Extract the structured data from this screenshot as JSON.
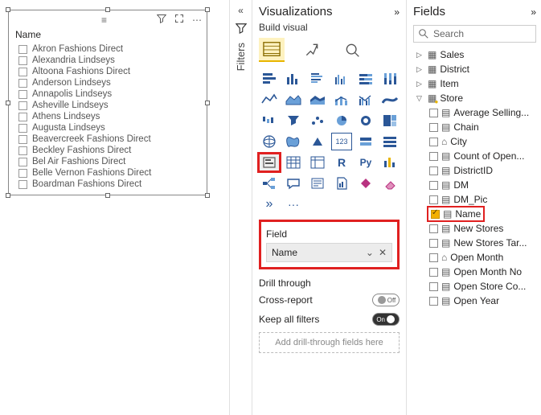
{
  "slicer": {
    "title": "Name",
    "items": [
      "Akron Fashions Direct",
      "Alexandria Lindseys",
      "Altoona Fashions Direct",
      "Anderson Lindseys",
      "Annapolis Lindseys",
      "Asheville Lindseys",
      "Athens Lindseys",
      "Augusta Lindseys",
      "Beavercreek Fashions Direct",
      "Beckley Fashions Direct",
      "Bel Air Fashions Direct",
      "Belle Vernon Fashions Direct",
      "Boardman Fashions Direct"
    ]
  },
  "filters": {
    "label": "Filters"
  },
  "viz": {
    "title": "Visualizations",
    "sub": "Build visual",
    "field_label": "Field",
    "field_value": "Name",
    "drill_title": "Drill through",
    "cross_label": "Cross-report",
    "cross_state": "Off",
    "keep_label": "Keep all filters",
    "keep_state": "On",
    "drop_hint": "Add drill-through fields here",
    "r_label": "R",
    "py_label": "Py",
    "more": "···"
  },
  "fields": {
    "title": "Fields",
    "search_ph": "Search",
    "tables": {
      "sales": "Sales",
      "district": "District",
      "item": "Item",
      "store": "Store"
    },
    "store_cols": [
      "Average Selling...",
      "Chain",
      "City",
      "Count of Open...",
      "DistrictID",
      "DM",
      "DM_Pic",
      "Name",
      "New Stores",
      "New Stores Tar...",
      "Open Month",
      "Open Month No",
      "Open Store Co...",
      "Open Year"
    ]
  },
  "colors": {
    "highlight": "#e02020",
    "accent": "#f3b000"
  }
}
